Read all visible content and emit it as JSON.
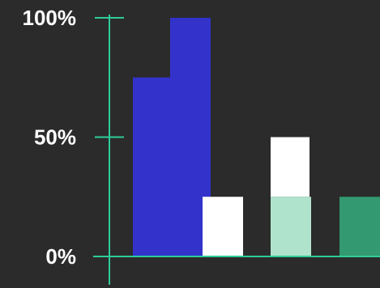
{
  "chart_data": {
    "type": "bar",
    "ylim": [
      0,
      100
    ],
    "y_ticks": [
      {
        "value": 0,
        "label": "0%"
      },
      {
        "value": 50,
        "label": "50%"
      },
      {
        "value": 100,
        "label": "100%"
      }
    ],
    "bars": [
      {
        "value": 75,
        "color": "#3333cc"
      },
      {
        "value": 100,
        "color": "#3333cc"
      },
      {
        "value": 25,
        "color": "#ffffff"
      },
      {
        "value": 50,
        "color": "#ffffff"
      },
      {
        "value": 25,
        "color": "#b0e3cc"
      },
      {
        "value": 25,
        "color": "#339970"
      }
    ],
    "grid": false,
    "legend": "none",
    "colors": {
      "background": "#2b2b2b",
      "axis": "#2ecc9a"
    }
  }
}
